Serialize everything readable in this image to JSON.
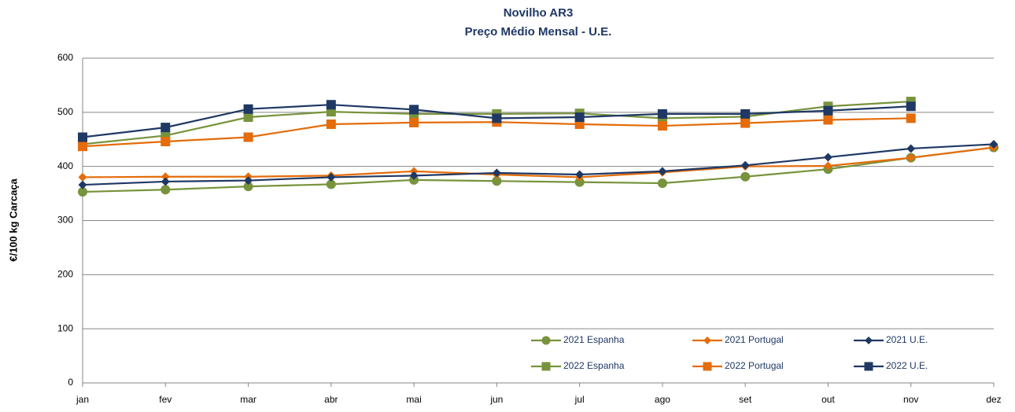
{
  "chart_data": {
    "type": "line",
    "title": "Novilho AR3",
    "subtitle": "Preço Médio Mensal - U.E.",
    "y_label": "€/100 kg  Carcaça",
    "categories": [
      "jan",
      "fev",
      "mar",
      "abr",
      "mai",
      "jun",
      "jul",
      "ago",
      "set",
      "out",
      "nov",
      "dez"
    ],
    "ylim": [
      0,
      600
    ],
    "yticks": [
      0,
      100,
      200,
      300,
      400,
      500,
      600
    ],
    "grid": true,
    "series": [
      {
        "name": "2021 Espanha",
        "color": "#77933c",
        "marker": "circle",
        "values": [
          353,
          357,
          363,
          367,
          375,
          373,
          371,
          369,
          381,
          395,
          416,
          435
        ]
      },
      {
        "name": "2021 Portugal",
        "color": "#e46c0a",
        "marker": "diamond",
        "values": [
          380,
          381,
          381,
          383,
          391,
          385,
          380,
          389,
          400,
          401,
          416,
          435
        ]
      },
      {
        "name": "2021 U.E.",
        "color": "#1f3864",
        "marker": "diamond",
        "values": [
          366,
          372,
          374,
          380,
          383,
          388,
          385,
          391,
          402,
          417,
          433,
          441
        ]
      },
      {
        "name": "2022 Espanha",
        "color": "#77933c",
        "marker": "square",
        "values": [
          441,
          457,
          491,
          501,
          497,
          497,
          498,
          489,
          492,
          511,
          520,
          null
        ]
      },
      {
        "name": "2022 Portugal",
        "color": "#e46c0a",
        "marker": "square",
        "values": [
          437,
          446,
          454,
          478,
          481,
          482,
          478,
          475,
          480,
          486,
          489,
          null
        ]
      },
      {
        "name": "2022 U.E.",
        "color": "#1f3864",
        "marker": "square",
        "values": [
          454,
          472,
          506,
          514,
          505,
          489,
          491,
          497,
          497,
          503,
          511,
          null
        ]
      }
    ]
  }
}
